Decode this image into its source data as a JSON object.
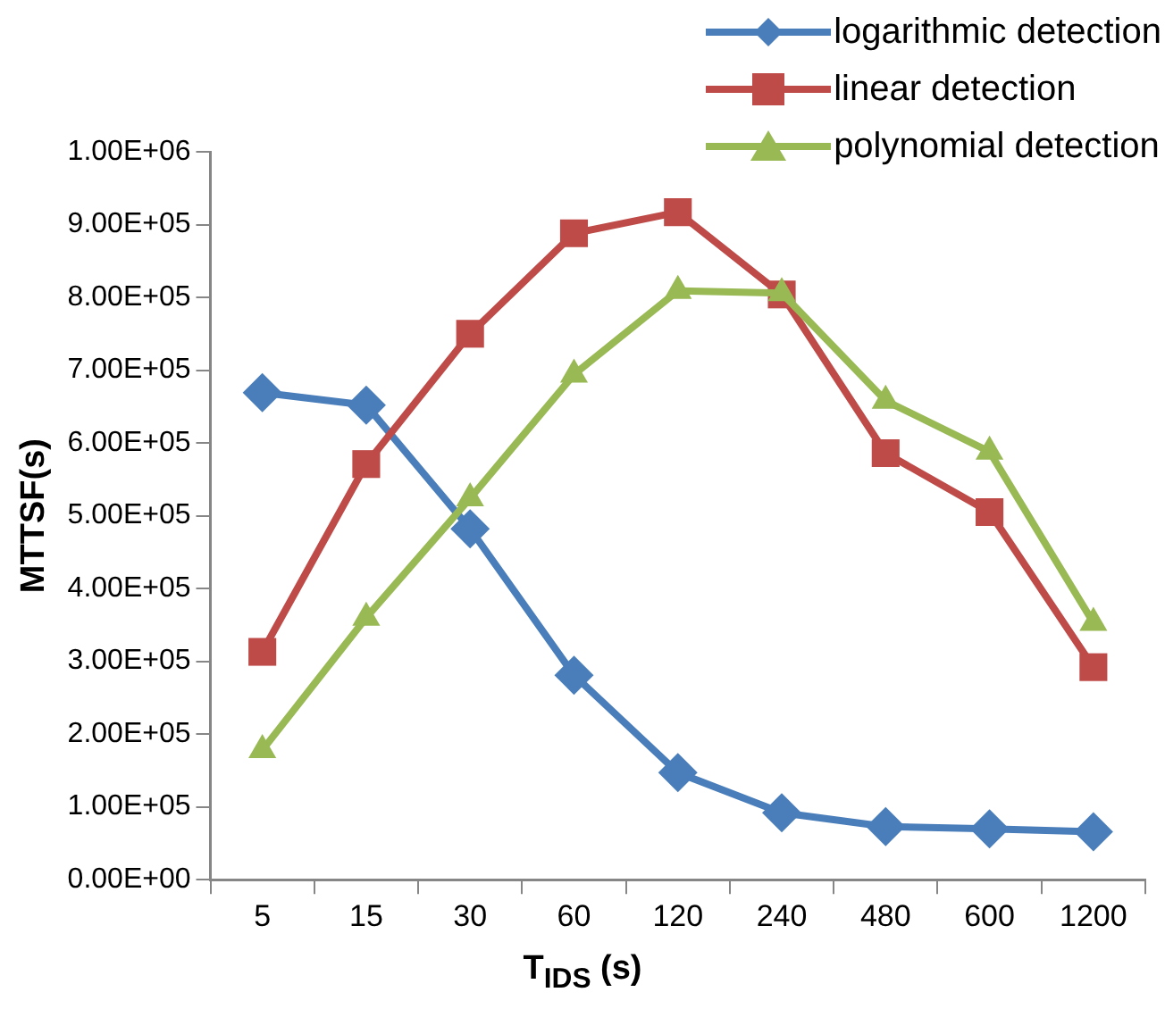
{
  "chart_data": {
    "type": "line",
    "xlabel": "T$_{IDS}$ (s)",
    "ylabel": "MTTSF(s)",
    "categories": [
      "5",
      "15",
      "30",
      "60",
      "120",
      "240",
      "480",
      "600",
      "1200"
    ],
    "series": [
      {
        "name": "logarithmic detection",
        "color": "#4a7ebb",
        "marker": "diamond",
        "values": [
          669000,
          652000,
          482000,
          281000,
          147000,
          92000,
          73000,
          70000,
          66000
        ]
      },
      {
        "name": "linear detection",
        "color": "#be4b48",
        "marker": "square",
        "values": [
          313000,
          571000,
          750000,
          888000,
          917000,
          804000,
          586000,
          505000,
          292000
        ]
      },
      {
        "name": "polynomial detection",
        "color": "#98b954",
        "marker": "triangle",
        "values": [
          178000,
          360000,
          524000,
          694000,
          809000,
          806000,
          658000,
          588000,
          353000
        ]
      }
    ],
    "ylim": [
      0,
      1000000
    ],
    "yticks": [
      {
        "value": 0,
        "label": "0.00E+00"
      },
      {
        "value": 100000,
        "label": "1.00E+05"
      },
      {
        "value": 200000,
        "label": "2.00E+05"
      },
      {
        "value": 300000,
        "label": "3.00E+05"
      },
      {
        "value": 400000,
        "label": "4.00E+05"
      },
      {
        "value": 500000,
        "label": "5.00E+05"
      },
      {
        "value": 600000,
        "label": "6.00E+05"
      },
      {
        "value": 700000,
        "label": "7.00E+05"
      },
      {
        "value": 800000,
        "label": "8.00E+05"
      },
      {
        "value": 900000,
        "label": "9.00E+05"
      },
      {
        "value": 1000000,
        "label": "1.00E+06"
      }
    ],
    "grid": false,
    "legend": "top right"
  }
}
